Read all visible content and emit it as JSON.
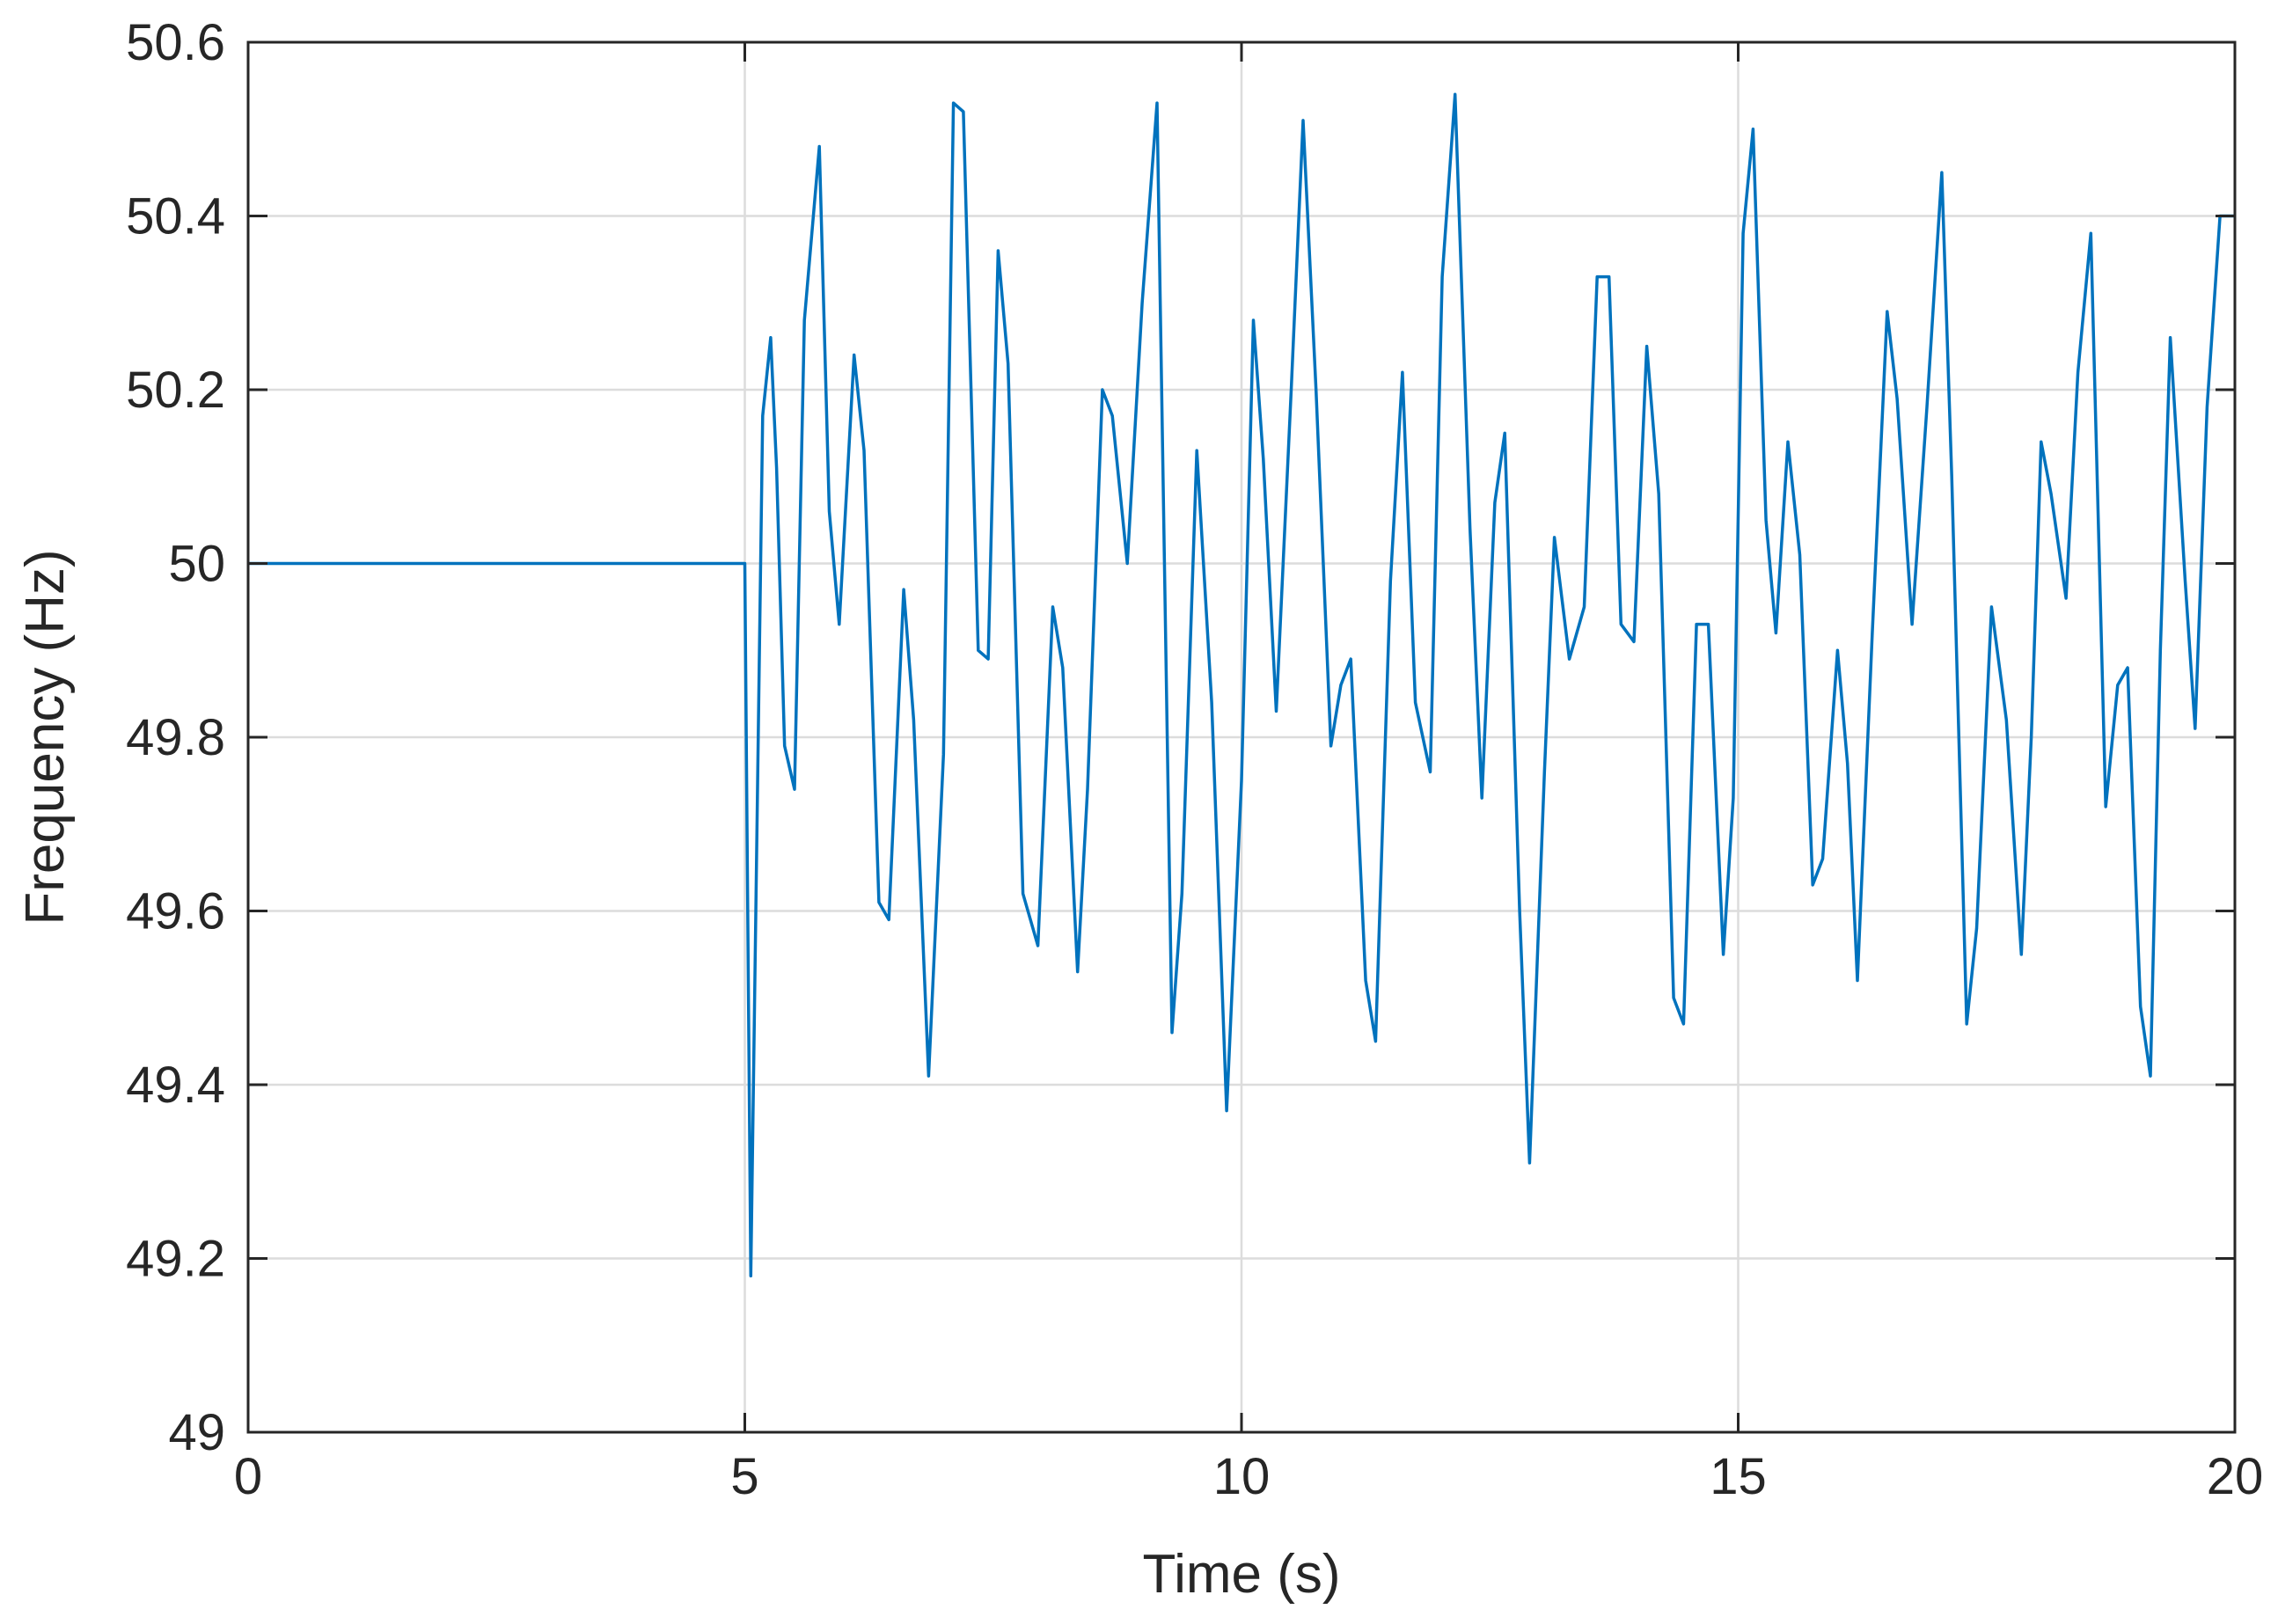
{
  "chart_data": {
    "type": "line",
    "xlabel": "Time (s)",
    "ylabel": "Frequency (Hz)",
    "xlim": [
      0,
      20
    ],
    "ylim": [
      49,
      50.6
    ],
    "xticks": [
      0,
      5,
      10,
      15,
      20
    ],
    "yticks": [
      49,
      49.2,
      49.4,
      49.6,
      49.8,
      50,
      50.2,
      50.4,
      50.6
    ],
    "xtick_labels": [
      "0",
      "5",
      "10",
      "15",
      "20"
    ],
    "ytick_labels": [
      "49",
      "49.2",
      "49.4",
      "49.6",
      "49.8",
      "50",
      "50.2",
      "50.4",
      "50.6"
    ],
    "grid": true,
    "box": true,
    "line_color": "#0072BD",
    "series": [
      {
        "x": [
          0,
          5.0,
          5.06,
          5.18,
          5.26,
          5.32,
          5.4,
          5.5,
          5.6,
          5.75,
          5.85,
          5.95,
          6.1,
          6.2,
          6.35,
          6.45,
          6.6,
          6.7,
          6.85,
          7.0,
          7.1,
          7.2,
          7.35,
          7.45,
          7.55,
          7.65,
          7.8,
          7.95,
          8.1,
          8.2,
          8.35,
          8.45,
          8.6,
          8.7,
          8.85,
          9.0,
          9.15,
          9.3,
          9.4,
          9.55,
          9.7,
          9.85,
          10.0,
          10.12,
          10.22,
          10.35,
          10.5,
          10.62,
          10.75,
          10.9,
          11.0,
          11.1,
          11.25,
          11.35,
          11.5,
          11.62,
          11.75,
          11.9,
          12.02,
          12.15,
          12.3,
          12.42,
          12.55,
          12.65,
          12.8,
          12.9,
          13.05,
          13.15,
          13.3,
          13.45,
          13.58,
          13.7,
          13.82,
          13.95,
          14.08,
          14.2,
          14.35,
          14.45,
          14.58,
          14.7,
          14.85,
          14.95,
          15.05,
          15.15,
          15.28,
          15.38,
          15.5,
          15.62,
          15.75,
          15.85,
          16.0,
          16.1,
          16.2,
          16.35,
          16.5,
          16.6,
          16.75,
          16.9,
          17.05,
          17.15,
          17.3,
          17.4,
          17.55,
          17.7,
          17.85,
          17.95,
          18.05,
          18.15,
          18.3,
          18.42,
          18.55,
          18.7,
          18.82,
          18.92,
          19.05,
          19.15,
          19.25,
          19.35,
          19.5,
          19.6,
          19.72,
          19.85,
          20.0
        ],
        "y": [
          50.0,
          50.0,
          49.18,
          50.17,
          50.26,
          50.11,
          49.79,
          49.74,
          50.28,
          50.48,
          50.06,
          49.93,
          50.24,
          50.13,
          49.61,
          49.59,
          49.97,
          49.82,
          49.41,
          49.78,
          50.53,
          50.52,
          49.9,
          49.89,
          50.36,
          50.23,
          49.62,
          49.56,
          49.95,
          49.88,
          49.53,
          49.74,
          50.2,
          50.17,
          50.0,
          50.3,
          50.53,
          49.46,
          49.62,
          50.13,
          49.84,
          49.37,
          49.75,
          50.28,
          50.12,
          49.83,
          50.2,
          50.51,
          50.2,
          49.79,
          49.86,
          49.89,
          49.52,
          49.45,
          49.98,
          50.22,
          49.84,
          49.76,
          50.33,
          50.54,
          50.04,
          49.73,
          50.07,
          50.15,
          49.6,
          49.31,
          49.76,
          50.03,
          49.89,
          49.95,
          50.33,
          50.33,
          49.93,
          49.91,
          50.25,
          50.08,
          49.5,
          49.47,
          49.93,
          49.93,
          49.55,
          49.73,
          50.38,
          50.5,
          50.05,
          49.92,
          50.14,
          50.01,
          49.63,
          49.66,
          49.9,
          49.77,
          49.52,
          49.92,
          50.29,
          50.19,
          49.93,
          50.18,
          50.45,
          50.1,
          49.47,
          49.58,
          49.95,
          49.82,
          49.55,
          49.8,
          50.14,
          50.08,
          49.96,
          50.22,
          50.38,
          49.72,
          49.86,
          49.88,
          49.49,
          49.41,
          49.9,
          50.26,
          49.98,
          49.81,
          50.18,
          50.4,
          50.4
        ]
      }
    ]
  }
}
